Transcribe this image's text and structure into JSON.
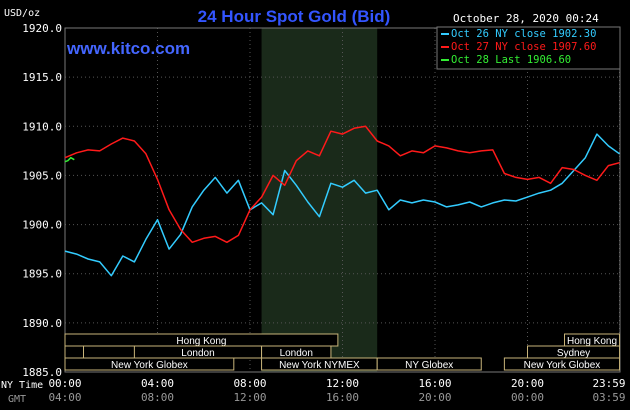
{
  "chart_data": {
    "type": "line",
    "title": "24 Hour Spot Gold (Bid)",
    "watermark": "www.kitco.com",
    "timestamp": "October 28, 2020 00:24",
    "ylabel": "USD/oz",
    "ylim": [
      1885.0,
      1920.0
    ],
    "ytick_labels": [
      "1920.0",
      "1915.0",
      "1910.0",
      "1905.0",
      "1900.0",
      "1895.0",
      "1890.0",
      "1885.0"
    ],
    "ytick_values": [
      1920,
      1915,
      1910,
      1905,
      1900,
      1895,
      1890,
      1885
    ],
    "xlim": [
      0,
      24
    ],
    "x_tick_values": [
      0,
      4,
      8,
      12,
      16,
      20,
      23.98
    ],
    "ny_time_label": "NY Time",
    "gmt_label": "GMT",
    "ny_time_ticks": [
      "00:00",
      "04:00",
      "08:00",
      "12:00",
      "16:00",
      "20:00",
      "23:59"
    ],
    "gmt_ticks": [
      "04:00",
      "08:00",
      "12:00",
      "16:00",
      "20:00",
      "00:00",
      "03:59"
    ],
    "highlight_hours": [
      8.5,
      13.5
    ],
    "legend": [
      {
        "text": "Oct 26 NY close 1902.30",
        "color": "#33ccff"
      },
      {
        "text": "Oct 27 NY close 1907.60",
        "color": "#ff1a1a"
      },
      {
        "text": "Oct 28 Last 1906.60",
        "color": "#33ee33"
      }
    ],
    "series": [
      {
        "name": "Oct 26",
        "color": "#33ccff",
        "x": [
          0,
          0.5,
          1,
          1.5,
          2,
          2.5,
          3,
          3.5,
          4,
          4.5,
          5,
          5.5,
          6,
          6.5,
          7,
          7.5,
          8,
          8.5,
          9,
          9.5,
          10,
          10.5,
          11,
          11.5,
          12,
          12.5,
          13,
          13.5,
          14,
          14.5,
          15,
          15.5,
          16,
          16.5,
          17,
          17.5,
          18,
          18.5,
          19,
          19.5,
          20,
          20.5,
          21,
          21.5,
          22,
          22.5,
          23,
          23.5,
          23.98
        ],
        "values": [
          1897.3,
          1897.0,
          1896.5,
          1896.2,
          1894.8,
          1896.8,
          1896.2,
          1898.5,
          1900.5,
          1897.5,
          1899.0,
          1901.8,
          1903.5,
          1904.8,
          1903.2,
          1904.5,
          1901.5,
          1902.2,
          1901.0,
          1905.5,
          1904.0,
          1902.3,
          1900.8,
          1904.2,
          1903.8,
          1904.5,
          1903.2,
          1903.5,
          1901.5,
          1902.5,
          1902.2,
          1902.5,
          1902.3,
          1901.8,
          1902.0,
          1902.3,
          1901.8,
          1902.2,
          1902.5,
          1902.4,
          1902.8,
          1903.2,
          1903.5,
          1904.2,
          1905.5,
          1906.8,
          1909.2,
          1908.0,
          1907.2
        ]
      },
      {
        "name": "Oct 27",
        "color": "#ff1a1a",
        "x": [
          0,
          0.5,
          1,
          1.5,
          2,
          2.5,
          3,
          3.5,
          4,
          4.5,
          5,
          5.5,
          6,
          6.5,
          7,
          7.5,
          8,
          8.5,
          9,
          9.5,
          10,
          10.5,
          11,
          11.5,
          12,
          12.5,
          13,
          13.5,
          14,
          14.5,
          15,
          15.5,
          16,
          16.5,
          17,
          17.5,
          18,
          18.5,
          19,
          19.5,
          20,
          20.5,
          21,
          21.5,
          22,
          22.5,
          23,
          23.5,
          23.98
        ],
        "values": [
          1906.8,
          1907.3,
          1907.6,
          1907.5,
          1908.2,
          1908.8,
          1908.5,
          1907.2,
          1904.6,
          1901.5,
          1899.5,
          1898.2,
          1898.6,
          1898.8,
          1898.2,
          1898.9,
          1901.5,
          1902.8,
          1905.0,
          1904.0,
          1906.5,
          1907.5,
          1907.0,
          1909.5,
          1909.2,
          1909.8,
          1910.0,
          1908.5,
          1908.0,
          1907.0,
          1907.5,
          1907.3,
          1908.0,
          1907.8,
          1907.5,
          1907.3,
          1907.5,
          1907.6,
          1905.2,
          1904.8,
          1904.6,
          1904.8,
          1904.2,
          1905.8,
          1905.6,
          1905.0,
          1904.5,
          1906.0,
          1906.3
        ]
      },
      {
        "name": "Oct 28",
        "color": "#33ee33",
        "x": [
          0,
          0.12,
          0.25,
          0.4
        ],
        "values": [
          1906.4,
          1906.5,
          1906.8,
          1906.6
        ]
      }
    ],
    "sessions": [
      {
        "label": "Hong Kong",
        "start": 0,
        "end": 11.8,
        "row": 0
      },
      {
        "label": "Hong Kong",
        "start": 21.6,
        "end": 23.98,
        "row": 0
      },
      {
        "label": "London",
        "start": 0,
        "end": 0.8,
        "row": 1
      },
      {
        "label": "London",
        "start": 3.0,
        "end": 8.5,
        "row": 1
      },
      {
        "label": "London",
        "start": 8.5,
        "end": 11.5,
        "row": 1
      },
      {
        "label": "Sydney",
        "start": 20.0,
        "end": 23.98,
        "row": 1
      },
      {
        "label": "New York Globex",
        "start": 0,
        "end": 7.3,
        "row": 2
      },
      {
        "label": "New York NYMEX",
        "start": 8.5,
        "end": 13.5,
        "row": 2
      },
      {
        "label": "NY Globex",
        "start": 13.5,
        "end": 18.0,
        "row": 2
      },
      {
        "label": "New York Globex",
        "start": 19.0,
        "end": 23.98,
        "row": 2
      }
    ]
  }
}
